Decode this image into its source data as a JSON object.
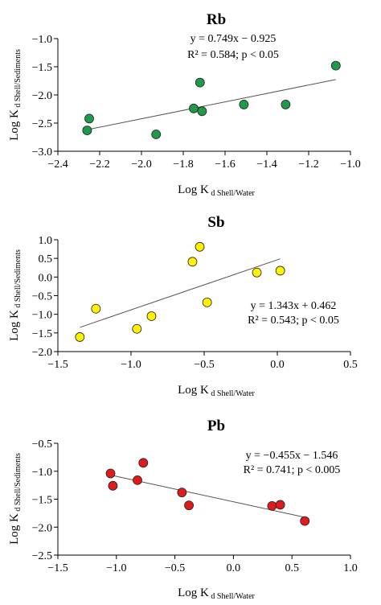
{
  "chart_data": [
    {
      "type": "scatter",
      "title": "Rb",
      "xlabel": "Log K",
      "xlabel_sub": "d Shell/Water",
      "ylabel": "Log K",
      "ylabel_sub": "d Shell/Sediments",
      "xlim": [
        -2.4,
        -1.0
      ],
      "ylim": [
        -3.0,
        -1.0
      ],
      "xticks": [
        -2.4,
        -2.2,
        -2.0,
        -1.8,
        -1.6,
        -1.4,
        -1.2,
        -1.0
      ],
      "yticks": [
        -3.0,
        -2.5,
        -2.0,
        -1.5,
        -1.0
      ],
      "xtick_labels": [
        "−2.4",
        "−2.2",
        "−2.0",
        "−1.8",
        "−1.6",
        "−1.4",
        "−1.2",
        "−1.0"
      ],
      "ytick_labels": [
        "−3.0",
        "−2.5",
        "−2.0",
        "−1.5",
        "−1.0"
      ],
      "marker_color": "#1f9a4a",
      "x": [
        -2.25,
        -2.26,
        -1.93,
        -1.75,
        -1.72,
        -1.71,
        -1.51,
        -1.31,
        -1.07
      ],
      "y": [
        -2.42,
        -2.63,
        -2.7,
        -2.24,
        -1.78,
        -2.29,
        -2.17,
        -2.17,
        -1.48
      ],
      "trendline": {
        "slope": 0.749,
        "intercept": -0.925,
        "x_range": [
          -2.26,
          -1.07
        ]
      },
      "equation": "y = 0.749x − 0.925",
      "stats": "R² = 0.584; p < 0.05"
    },
    {
      "type": "scatter",
      "title": "Sb",
      "xlabel": "Log K",
      "xlabel_sub": "d Shell/Water",
      "ylabel": "Log K",
      "ylabel_sub": "d Shell/Sediments",
      "xlim": [
        -1.5,
        0.5
      ],
      "ylim": [
        -2.0,
        1.0
      ],
      "xticks": [
        -1.5,
        -1.0,
        -0.5,
        0.0,
        0.5
      ],
      "yticks": [
        -2.0,
        -1.5,
        -1.0,
        -0.5,
        0.0,
        0.5,
        1.0
      ],
      "xtick_labels": [
        "−1.5",
        "−1.0",
        "−0.5",
        "0.0",
        "0.5"
      ],
      "ytick_labels": [
        "−2.0",
        "−1.5",
        "−1.0",
        "−0.5",
        "0.0",
        "0.5",
        "1.0"
      ],
      "marker_color": "#fff200",
      "x": [
        -1.35,
        -1.24,
        -0.96,
        -0.86,
        -0.58,
        -0.53,
        -0.48,
        -0.14,
        0.02
      ],
      "y": [
        -1.61,
        -0.85,
        -1.39,
        -1.05,
        0.41,
        0.81,
        -0.68,
        0.12,
        0.17
      ],
      "trendline": {
        "slope": 1.343,
        "intercept": 0.462,
        "x_range": [
          -1.35,
          0.02
        ]
      },
      "equation": "y = 1.343x + 0.462",
      "stats": "R² = 0.543;  p < 0.05"
    },
    {
      "type": "scatter",
      "title": "Pb",
      "xlabel": "Log K",
      "xlabel_sub": "d Shell/Water",
      "ylabel": "Log K",
      "ylabel_sub": "d Shell/Sediments",
      "xlim": [
        -1.5,
        1.0
      ],
      "ylim": [
        -2.5,
        -0.5
      ],
      "xticks": [
        -1.5,
        -1.0,
        -0.5,
        0.0,
        0.5,
        1.0
      ],
      "yticks": [
        -2.5,
        -2.0,
        -1.5,
        -1.0,
        -0.5
      ],
      "xtick_labels": [
        "−1.5",
        "−1.0",
        "−0.5",
        "0.0",
        "0.5",
        "1.0"
      ],
      "ytick_labels": [
        "−2.5",
        "−2.0",
        "−1.5",
        "−1.0",
        "−0.5"
      ],
      "marker_color": "#e01b1b",
      "x": [
        -1.05,
        -1.03,
        -0.82,
        -0.77,
        -0.44,
        -0.38,
        0.33,
        0.4,
        0.61
      ],
      "y": [
        -1.04,
        -1.26,
        -1.16,
        -0.85,
        -1.38,
        -1.61,
        -1.62,
        -1.6,
        -1.89
      ],
      "trendline": {
        "slope": -0.455,
        "intercept": -1.546,
        "x_range": [
          -1.05,
          0.61
        ]
      },
      "equation": "y = −0.455x − 1.546",
      "stats": "R² = 0.741;  p < 0.005"
    }
  ]
}
